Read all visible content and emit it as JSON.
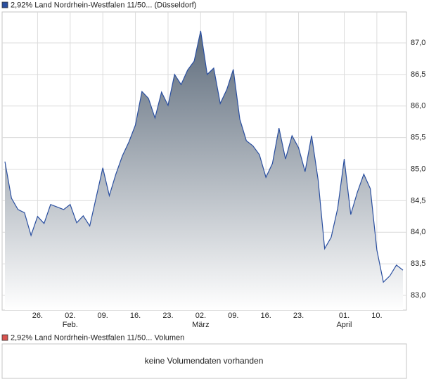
{
  "chart_data": {
    "type": "area",
    "series": [
      {
        "name": "2,92% Land Nordrhein-Westfalen 11/50... (Düsseldorf)",
        "color": "#2a4fa0",
        "values": [
          85.12,
          84.54,
          84.36,
          84.31,
          83.95,
          84.25,
          84.14,
          84.44,
          84.4,
          84.36,
          84.44,
          84.15,
          84.26,
          84.1,
          84.56,
          85.02,
          84.58,
          84.92,
          85.21,
          85.43,
          85.7,
          86.23,
          86.12,
          85.81,
          86.22,
          86.01,
          86.5,
          86.34,
          86.57,
          86.71,
          87.19,
          86.5,
          86.6,
          86.04,
          86.26,
          86.58,
          85.79,
          85.45,
          85.37,
          85.23,
          84.87,
          85.09,
          85.65,
          85.16,
          85.53,
          85.34,
          84.96,
          85.53,
          84.83,
          83.74,
          83.92,
          84.38,
          85.16,
          84.28,
          84.63,
          84.92,
          84.69,
          83.72,
          83.21,
          83.31,
          83.48,
          83.4
        ]
      }
    ],
    "categories": [
      null,
      null,
      null,
      null,
      null,
      "26.",
      null,
      null,
      null,
      null,
      "02.",
      null,
      null,
      null,
      null,
      "09.",
      null,
      null,
      null,
      null,
      "16.",
      null,
      null,
      null,
      null,
      "23.",
      null,
      null,
      null,
      null,
      "02.",
      null,
      null,
      null,
      null,
      "09.",
      null,
      null,
      null,
      null,
      "16.",
      null,
      null,
      null,
      null,
      "23.",
      null,
      null,
      null,
      null,
      null,
      null,
      "01.",
      null,
      null,
      null,
      null,
      "10.",
      null,
      null,
      null,
      null
    ],
    "month_labels": [
      null,
      null,
      null,
      null,
      null,
      null,
      null,
      null,
      null,
      null,
      "Feb.",
      null,
      null,
      null,
      null,
      null,
      null,
      null,
      null,
      null,
      null,
      null,
      null,
      null,
      null,
      null,
      null,
      null,
      null,
      null,
      "März",
      null,
      null,
      null,
      null,
      null,
      null,
      null,
      null,
      null,
      null,
      null,
      null,
      null,
      null,
      null,
      null,
      null,
      null,
      null,
      null,
      null,
      "April",
      null,
      null,
      null,
      null,
      null,
      null,
      null,
      null,
      null
    ],
    "ylim": [
      82.766,
      87.49
    ],
    "yticks": [
      {
        "value": 83,
        "label": "83,0"
      },
      {
        "value": 83.5,
        "label": "83,5"
      },
      {
        "value": 84,
        "label": "84,0"
      },
      {
        "value": 84.5,
        "label": "84,5"
      },
      {
        "value": 85,
        "label": "85,0"
      },
      {
        "value": 85.5,
        "label": "85,5"
      },
      {
        "value": 86,
        "label": "86,0"
      },
      {
        "value": 86.5,
        "label": "86,5"
      },
      {
        "value": 87,
        "label": "87,0"
      }
    ],
    "grid": true
  },
  "volume_panel": {
    "legend": "2,92% Land Nordrhein-Westfalen 11/50... Volumen",
    "color": "#d9534f",
    "message": "keine Volumendaten vorhanden"
  }
}
